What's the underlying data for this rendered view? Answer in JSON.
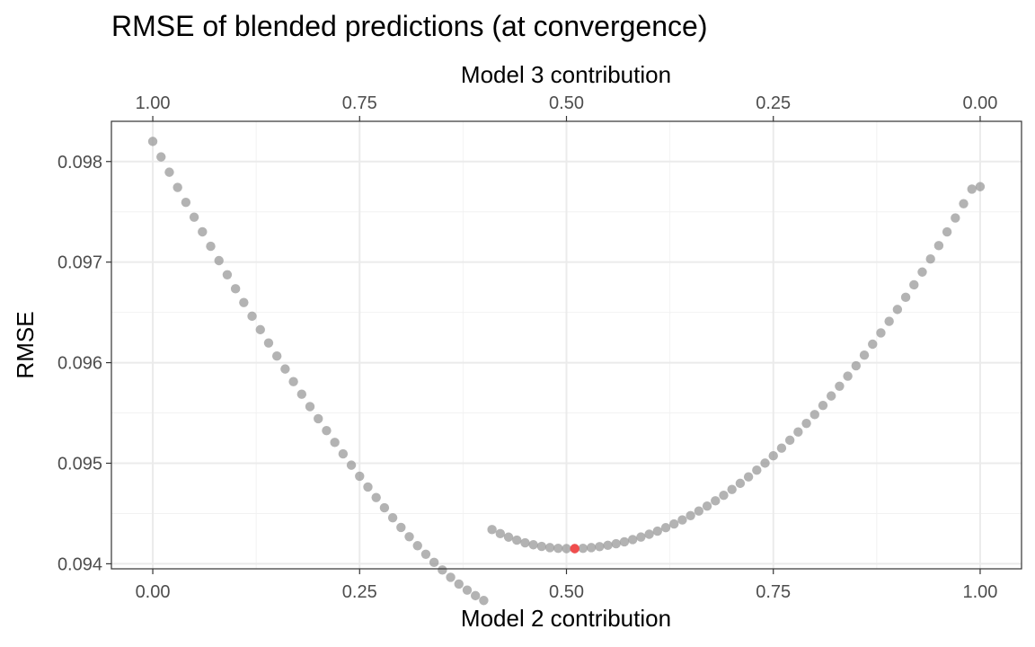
{
  "chart_data": {
    "type": "scatter",
    "title": "RMSE of blended predictions (at convergence)",
    "xlabel": "Model 2 contribution",
    "x2label": "Model 3 contribution",
    "ylabel": "RMSE",
    "xlim": [
      -0.05,
      1.05
    ],
    "ylim": [
      0.09395,
      0.0984
    ],
    "x_ticks": [
      0,
      0.25,
      0.5,
      0.75,
      1
    ],
    "x_tick_labels": [
      "0.00",
      "0.25",
      "0.50",
      "0.75",
      "1.00"
    ],
    "x2_tick_labels": [
      "1.00",
      "0.75",
      "0.50",
      "0.25",
      "0.00"
    ],
    "y_ticks": [
      0.094,
      0.095,
      0.096,
      0.097,
      0.098
    ],
    "y_tick_labels": [
      "0.094",
      "0.095",
      "0.096",
      "0.097",
      "0.098"
    ],
    "grid": true,
    "point_color": "#999999",
    "highlight_color": "#ff3333",
    "highlight": {
      "x": 0.51,
      "y": 0.094151
    },
    "points": [
      [
        0.0,
        0.0982
      ],
      [
        0.01,
        0.098046
      ],
      [
        0.02,
        0.097894
      ],
      [
        0.03,
        0.097743
      ],
      [
        0.04,
        0.097594
      ],
      [
        0.05,
        0.097447
      ],
      [
        0.06,
        0.097301
      ],
      [
        0.07,
        0.097157
      ],
      [
        0.08,
        0.097015
      ],
      [
        0.09,
        0.096874
      ],
      [
        0.1,
        0.096735
      ],
      [
        0.11,
        0.096598
      ],
      [
        0.12,
        0.096462
      ],
      [
        0.13,
        0.096328
      ],
      [
        0.14,
        0.096196
      ],
      [
        0.15,
        0.096066
      ],
      [
        0.16,
        0.095937
      ],
      [
        0.17,
        0.095811
      ],
      [
        0.18,
        0.095686
      ],
      [
        0.19,
        0.095563
      ],
      [
        0.2,
        0.095443
      ],
      [
        0.21,
        0.095324
      ],
      [
        0.22,
        0.095207
      ],
      [
        0.23,
        0.095093
      ],
      [
        0.24,
        0.094981
      ],
      [
        0.25,
        0.094871
      ],
      [
        0.26,
        0.094764
      ],
      [
        0.27,
        0.094659
      ],
      [
        0.28,
        0.094557
      ],
      [
        0.29,
        0.094458
      ],
      [
        0.3,
        0.094362
      ],
      [
        0.31,
        0.094269
      ],
      [
        0.32,
        0.09418
      ],
      [
        0.33,
        0.094095
      ],
      [
        0.34,
        0.094014
      ],
      [
        0.35,
        0.093938
      ],
      [
        0.36,
        0.093866
      ],
      [
        0.37,
        0.093799
      ],
      [
        0.38,
        0.093738
      ],
      [
        0.39,
        0.093683
      ],
      [
        0.4,
        0.093635
      ],
      [
        0.41,
        0.09434
      ],
      [
        0.42,
        0.0943
      ],
      [
        0.43,
        0.094265
      ],
      [
        0.44,
        0.094235
      ],
      [
        0.45,
        0.094209
      ],
      [
        0.46,
        0.094189
      ],
      [
        0.47,
        0.094173
      ],
      [
        0.48,
        0.094161
      ],
      [
        0.49,
        0.094154
      ],
      [
        0.5,
        0.094151
      ],
      [
        0.51,
        0.094151
      ],
      [
        0.52,
        0.094154
      ],
      [
        0.53,
        0.094161
      ],
      [
        0.54,
        0.094171
      ],
      [
        0.55,
        0.094184
      ],
      [
        0.56,
        0.0942
      ],
      [
        0.57,
        0.094219
      ],
      [
        0.58,
        0.094241
      ],
      [
        0.59,
        0.094266
      ],
      [
        0.6,
        0.094294
      ],
      [
        0.61,
        0.094325
      ],
      [
        0.62,
        0.094359
      ],
      [
        0.63,
        0.094396
      ],
      [
        0.64,
        0.094436
      ],
      [
        0.65,
        0.094479
      ],
      [
        0.66,
        0.094525
      ],
      [
        0.67,
        0.094574
      ],
      [
        0.68,
        0.094626
      ],
      [
        0.69,
        0.094681
      ],
      [
        0.7,
        0.094739
      ],
      [
        0.71,
        0.0948
      ],
      [
        0.72,
        0.094864
      ],
      [
        0.73,
        0.094931
      ],
      [
        0.74,
        0.095001
      ],
      [
        0.75,
        0.095074
      ],
      [
        0.76,
        0.09515
      ],
      [
        0.77,
        0.095229
      ],
      [
        0.78,
        0.095311
      ],
      [
        0.79,
        0.095396
      ],
      [
        0.8,
        0.095484
      ],
      [
        0.81,
        0.095575
      ],
      [
        0.82,
        0.095669
      ],
      [
        0.83,
        0.095766
      ],
      [
        0.84,
        0.095866
      ],
      [
        0.85,
        0.095969
      ],
      [
        0.86,
        0.096075
      ],
      [
        0.87,
        0.096184
      ],
      [
        0.88,
        0.096296
      ],
      [
        0.89,
        0.096411
      ],
      [
        0.9,
        0.096529
      ],
      [
        0.91,
        0.09665
      ],
      [
        0.92,
        0.096774
      ],
      [
        0.93,
        0.096901
      ],
      [
        0.94,
        0.097031
      ],
      [
        0.95,
        0.097164
      ],
      [
        0.96,
        0.0973
      ],
      [
        0.97,
        0.097439
      ],
      [
        0.98,
        0.097581
      ],
      [
        0.99,
        0.097726
      ],
      [
        1.0,
        0.09775
      ]
    ]
  }
}
